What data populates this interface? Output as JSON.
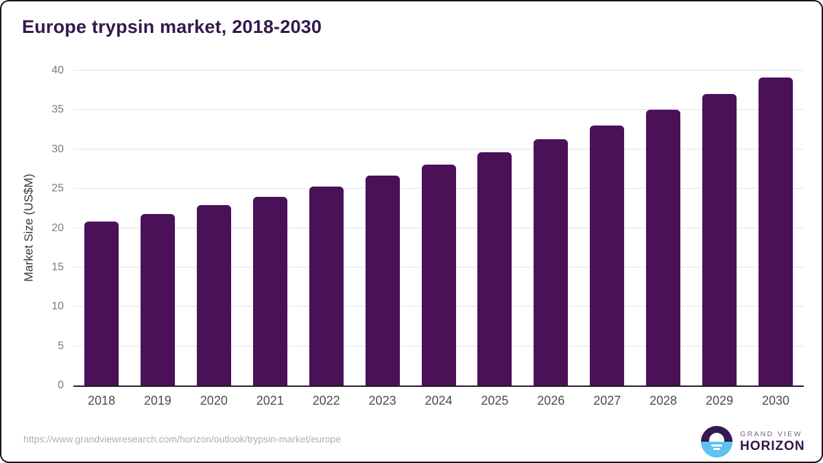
{
  "title": "Europe trypsin market, 2018-2030",
  "chart_data": {
    "type": "bar",
    "title": "Europe trypsin market, 2018-2030",
    "categories": [
      "2018",
      "2019",
      "2020",
      "2021",
      "2022",
      "2023",
      "2024",
      "2025",
      "2026",
      "2027",
      "2028",
      "2029",
      "2030"
    ],
    "values": [
      20.8,
      21.8,
      22.9,
      24.0,
      25.3,
      26.7,
      28.1,
      29.6,
      31.3,
      33.0,
      35.0,
      37.0,
      39.1
    ],
    "xlabel": "",
    "ylabel": "Market Size (US$M)",
    "ylim": [
      0,
      40
    ],
    "ytick_step": 5,
    "yticks": [
      0,
      5,
      10,
      15,
      20,
      25,
      30,
      35,
      40
    ],
    "grid": true,
    "legend_position": "none",
    "bar_color": "#4a1058"
  },
  "footer": {
    "source_url": "https://www.grandviewresearch.com/horizon/outlook/trypsin-market/europe",
    "logo": {
      "line1": "GRAND VIEW",
      "line2": "HORIZON",
      "icon": "sunset-horizon-circle-icon"
    }
  },
  "colors": {
    "bar": "#4a1058",
    "title_text": "#33194e",
    "axis_line": "#1f1f1f",
    "gridline": "#e3e3e3",
    "y_tick_text": "#7b7b7b",
    "x_tick_text": "#4c4c4c",
    "y_axis_title_text": "#3c3c3c",
    "url_text": "#aeaeae",
    "logo_purple": "#341a52",
    "logo_blue": "#5ec3f2",
    "logo_text_gray": "#6e6480",
    "logo_text_purple": "#2f164c"
  }
}
